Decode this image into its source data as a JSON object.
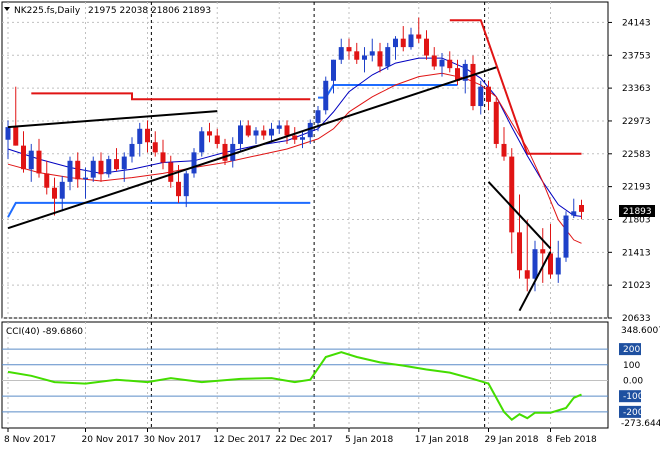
{
  "header": {
    "symbol": "NK225.fs,Daily",
    "ohlc": "21975 22038 21806 21893",
    "menu_icon": "triangle-down-icon"
  },
  "cci": {
    "label": "CCI(40) -89.6860",
    "levels": [
      200,
      100,
      0,
      -100,
      -200
    ],
    "level_labels": [
      "200",
      "100",
      "0.00",
      "-100",
      "-200"
    ],
    "top_value": "348.6007",
    "bottom_value": "-273.644"
  },
  "last_price": "21893",
  "colors": {
    "bull": "#1e40c8",
    "bear": "#e01414",
    "ma_fast": "#0000c0",
    "ma_slow": "#e01414",
    "level_line": "#e01414",
    "cci": "#44dd00",
    "trend": "#000000",
    "support_line": "#1e6cff"
  },
  "chart_data": {
    "type": "candlestick",
    "y_ticks": [
      24143,
      23753,
      23363,
      22973,
      22583,
      22193,
      21803,
      21413,
      21023,
      20633
    ],
    "y_tick_labels": [
      "24143",
      "23753",
      "23363",
      "22973",
      "22583",
      "22193",
      "21803",
      "21413",
      "21023",
      "20633"
    ],
    "ylim": [
      20633,
      24350
    ],
    "x_labels": [
      {
        "index": 0,
        "text": "8 Nov 2017"
      },
      {
        "index": 10,
        "text": "20 Nov 2017"
      },
      {
        "index": 18,
        "text": "30 Nov 2017"
      },
      {
        "index": 27,
        "text": "12 Dec 2017"
      },
      {
        "index": 35,
        "text": "22 Dec 2017"
      },
      {
        "index": 44,
        "text": "5 Jan 2018"
      },
      {
        "index": 53,
        "text": "17 Jan 2018"
      },
      {
        "index": 62,
        "text": "29 Jan 2018"
      },
      {
        "index": 70,
        "text": "8 Feb 2018"
      }
    ],
    "separators": [
      18,
      39,
      61
    ],
    "candles": [
      [
        22750,
        22980,
        22520,
        22900
      ],
      [
        22900,
        23380,
        22680,
        22680
      ],
      [
        22680,
        22850,
        22360,
        22400
      ],
      [
        22400,
        22700,
        22250,
        22620
      ],
      [
        22620,
        22760,
        22300,
        22350
      ],
      [
        22350,
        22500,
        22100,
        22180
      ],
      [
        22180,
        22300,
        21850,
        22050
      ],
      [
        22050,
        22320,
        21900,
        22250
      ],
      [
        22250,
        22550,
        22150,
        22500
      ],
      [
        22500,
        22600,
        22180,
        22280
      ],
      [
        22280,
        22420,
        22050,
        22300
      ],
      [
        22300,
        22550,
        22250,
        22500
      ],
      [
        22500,
        22600,
        22250,
        22340
      ],
      [
        22340,
        22560,
        22300,
        22520
      ],
      [
        22520,
        22650,
        22380,
        22400
      ],
      [
        22400,
        22600,
        22250,
        22550
      ],
      [
        22550,
        22780,
        22480,
        22700
      ],
      [
        22700,
        22950,
        22550,
        22880
      ],
      [
        22880,
        22980,
        22600,
        22720
      ],
      [
        22720,
        22850,
        22550,
        22600
      ],
      [
        22600,
        22750,
        22400,
        22480
      ],
      [
        22480,
        22560,
        22180,
        22250
      ],
      [
        22250,
        22450,
        22000,
        22080
      ],
      [
        22080,
        22380,
        21950,
        22350
      ],
      [
        22350,
        22650,
        22300,
        22600
      ],
      [
        22600,
        22900,
        22550,
        22850
      ],
      [
        22850,
        22950,
        22720,
        22800
      ],
      [
        22800,
        22880,
        22650,
        22700
      ],
      [
        22700,
        22760,
        22450,
        22500
      ],
      [
        22500,
        22780,
        22420,
        22700
      ],
      [
        22700,
        22980,
        22600,
        22920
      ],
      [
        22920,
        22980,
        22780,
        22800
      ],
      [
        22800,
        22900,
        22700,
        22860
      ],
      [
        22860,
        22920,
        22750,
        22800
      ],
      [
        22800,
        22950,
        22720,
        22880
      ],
      [
        22880,
        22980,
        22820,
        22920
      ],
      [
        22920,
        22980,
        22700,
        22800
      ],
      [
        22800,
        22900,
        22700,
        22750
      ],
      [
        22750,
        22850,
        22650,
        22780
      ],
      [
        22780,
        22990,
        22700,
        22950
      ],
      [
        22950,
        23150,
        22850,
        23100
      ],
      [
        23100,
        23500,
        23050,
        23450
      ],
      [
        23450,
        23700,
        23300,
        23700
      ],
      [
        23700,
        23950,
        23650,
        23850
      ],
      [
        23850,
        23950,
        23700,
        23800
      ],
      [
        23800,
        23900,
        23650,
        23700
      ],
      [
        23700,
        23850,
        23550,
        23750
      ],
      [
        23750,
        23950,
        23680,
        23800
      ],
      [
        23800,
        23900,
        23550,
        23620
      ],
      [
        23620,
        23900,
        23580,
        23850
      ],
      [
        23850,
        23980,
        23700,
        23950
      ],
      [
        23950,
        24100,
        23800,
        23850
      ],
      [
        23850,
        24080,
        23820,
        24000
      ],
      [
        24000,
        24200,
        23900,
        23950
      ],
      [
        23950,
        24050,
        23700,
        23750
      ],
      [
        23750,
        23850,
        23580,
        23620
      ],
      [
        23620,
        23780,
        23500,
        23700
      ],
      [
        23700,
        23800,
        23550,
        23600
      ],
      [
        23600,
        23700,
        23400,
        23450
      ],
      [
        23450,
        23700,
        23300,
        23650
      ],
      [
        23650,
        23750,
        23100,
        23150
      ],
      [
        23150,
        23450,
        23050,
        23380
      ],
      [
        23380,
        23450,
        23100,
        23200
      ],
      [
        23200,
        23250,
        22650,
        22700
      ],
      [
        22700,
        22900,
        22500,
        22550
      ],
      [
        22550,
        22650,
        21400,
        21650
      ],
      [
        21650,
        22100,
        21100,
        21200
      ],
      [
        21200,
        21800,
        20950,
        21100
      ],
      [
        21100,
        21550,
        20950,
        21450
      ],
      [
        21450,
        21700,
        21050,
        21400
      ],
      [
        21400,
        21750,
        21100,
        21150
      ],
      [
        21150,
        21550,
        21050,
        21350
      ],
      [
        21350,
        21900,
        21300,
        21850
      ],
      [
        21850,
        22050,
        21820,
        21900
      ],
      [
        21975,
        22038,
        21806,
        21893
      ]
    ],
    "ma_fast": [
      [
        0,
        22640
      ],
      [
        4,
        22520
      ],
      [
        8,
        22420
      ],
      [
        12,
        22350
      ],
      [
        16,
        22400
      ],
      [
        20,
        22480
      ],
      [
        24,
        22500
      ],
      [
        28,
        22600
      ],
      [
        32,
        22680
      ],
      [
        36,
        22740
      ],
      [
        40,
        22880
      ],
      [
        42,
        23080
      ],
      [
        44,
        23320
      ],
      [
        47,
        23520
      ],
      [
        50,
        23660
      ],
      [
        53,
        23720
      ],
      [
        56,
        23720
      ],
      [
        59,
        23600
      ],
      [
        61,
        23480
      ],
      [
        63,
        23260
      ],
      [
        65,
        22900
      ],
      [
        67,
        22560
      ],
      [
        69,
        22250
      ],
      [
        71,
        21980
      ],
      [
        73,
        21850
      ],
      [
        74,
        21840
      ]
    ],
    "ma_slow": [
      [
        0,
        22460
      ],
      [
        4,
        22360
      ],
      [
        8,
        22300
      ],
      [
        12,
        22260
      ],
      [
        16,
        22300
      ],
      [
        20,
        22350
      ],
      [
        24,
        22420
      ],
      [
        28,
        22480
      ],
      [
        32,
        22560
      ],
      [
        36,
        22640
      ],
      [
        40,
        22760
      ],
      [
        42,
        22880
      ],
      [
        44,
        23080
      ],
      [
        47,
        23260
      ],
      [
        50,
        23400
      ],
      [
        53,
        23500
      ],
      [
        56,
        23540
      ],
      [
        59,
        23480
      ],
      [
        61,
        23400
      ],
      [
        63,
        23260
      ],
      [
        65,
        22950
      ],
      [
        67,
        22650
      ],
      [
        69,
        22250
      ],
      [
        71,
        21800
      ],
      [
        73,
        21560
      ],
      [
        74,
        21520
      ]
    ],
    "red_levels": [
      [
        [
          3,
          23300
        ],
        [
          16,
          23300
        ],
        [
          16,
          23230
        ],
        [
          31,
          23230
        ],
        [
          31,
          23230
        ],
        [
          39,
          23230
        ]
      ],
      [
        [
          57,
          24170
        ],
        [
          61,
          24170
        ],
        [
          67,
          22583
        ],
        [
          74,
          22583
        ]
      ]
    ],
    "blue_steps": [
      [
        [
          0,
          21830
        ],
        [
          1,
          22000
        ],
        [
          4,
          22000
        ],
        [
          4,
          22000
        ],
        [
          39,
          22000
        ]
      ],
      [
        [
          40,
          23250
        ],
        [
          41,
          23250
        ],
        [
          42,
          23400
        ],
        [
          54,
          23400
        ],
        [
          56,
          23400
        ],
        [
          58,
          23400
        ]
      ]
    ],
    "trend_lines": [
      [
        [
          0,
          22900
        ],
        [
          27,
          23090
        ]
      ],
      [
        [
          0,
          21700
        ],
        [
          63,
          23610
        ]
      ],
      [
        [
          62,
          22250
        ],
        [
          70,
          21460
        ]
      ],
      [
        [
          66,
          20720
        ],
        [
          70,
          21420
        ]
      ]
    ],
    "cci_values": [
      [
        0,
        55
      ],
      [
        3,
        30
      ],
      [
        6,
        -10
      ],
      [
        10,
        -20
      ],
      [
        14,
        5
      ],
      [
        18,
        -10
      ],
      [
        21,
        15
      ],
      [
        25,
        -10
      ],
      [
        30,
        10
      ],
      [
        34,
        15
      ],
      [
        37,
        -10
      ],
      [
        39,
        5
      ],
      [
        41,
        150
      ],
      [
        43,
        180
      ],
      [
        45,
        150
      ],
      [
        48,
        115
      ],
      [
        51,
        95
      ],
      [
        54,
        70
      ],
      [
        57,
        50
      ],
      [
        60,
        10
      ],
      [
        62,
        -20
      ],
      [
        64,
        -200
      ],
      [
        65,
        -250
      ],
      [
        66,
        -215
      ],
      [
        67,
        -240
      ],
      [
        68,
        -205
      ],
      [
        70,
        -205
      ],
      [
        72,
        -175
      ],
      [
        73,
        -110
      ],
      [
        74,
        -90
      ]
    ],
    "cci_ylim": [
      -290,
      360
    ]
  }
}
